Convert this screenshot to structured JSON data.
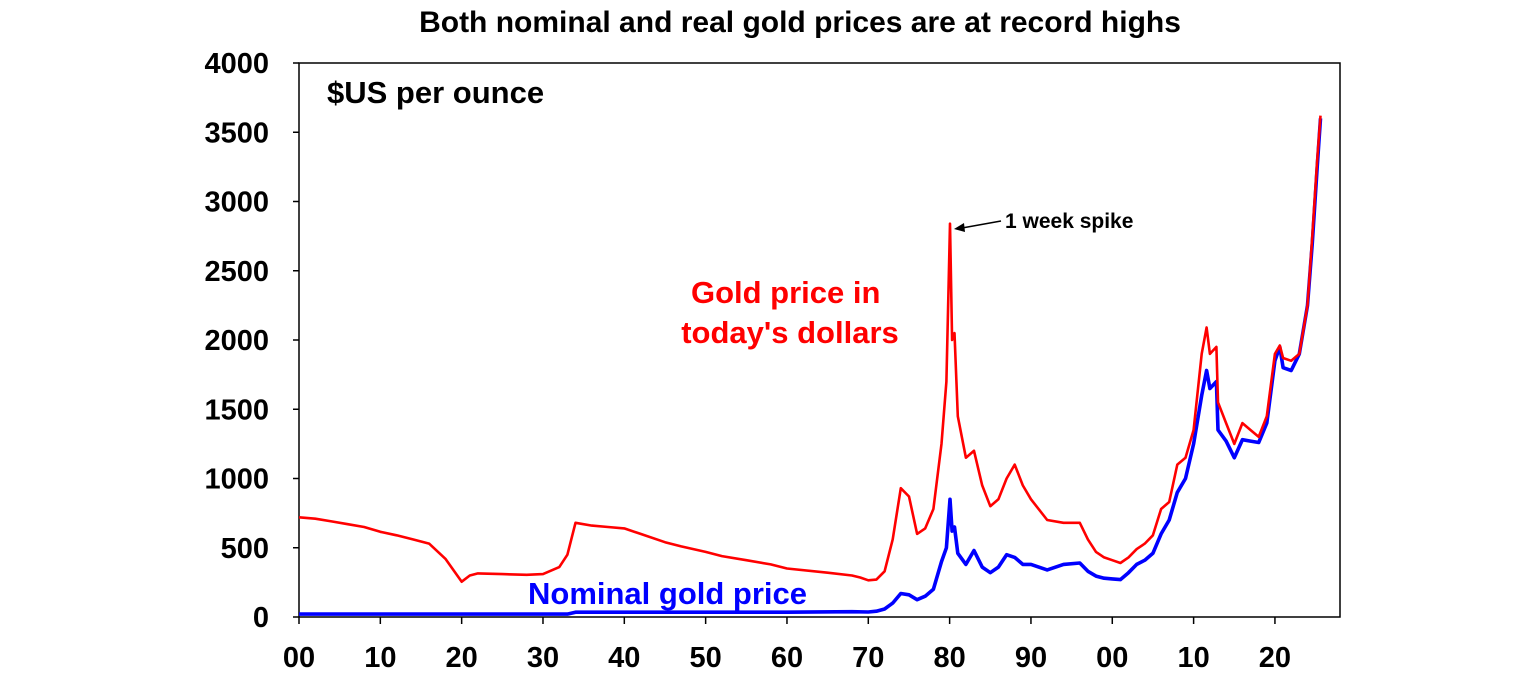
{
  "chart_data": {
    "type": "line",
    "title": "Both nominal and real gold prices are at record highs",
    "unit_label": "$US per ounce",
    "ylim": [
      0,
      4000
    ],
    "yticks": [
      0,
      500,
      1000,
      1500,
      2000,
      2500,
      3000,
      3500,
      4000
    ],
    "xlim": [
      1900,
      2028
    ],
    "xticks": [
      {
        "value": 1900,
        "label": "00"
      },
      {
        "value": 1910,
        "label": "10"
      },
      {
        "value": 1920,
        "label": "20"
      },
      {
        "value": 1930,
        "label": "30"
      },
      {
        "value": 1940,
        "label": "40"
      },
      {
        "value": 1950,
        "label": "50"
      },
      {
        "value": 1960,
        "label": "60"
      },
      {
        "value": 1970,
        "label": "70"
      },
      {
        "value": 1980,
        "label": "80"
      },
      {
        "value": 1990,
        "label": "90"
      },
      {
        "value": 2000,
        "label": "00"
      },
      {
        "value": 2010,
        "label": "10"
      },
      {
        "value": 2020,
        "label": "20"
      }
    ],
    "grid": false,
    "legend": "none (inline series labels)",
    "series": [
      {
        "name": "Gold price in today's dollars",
        "label_line1": "Gold price in",
        "label_line2": "today's dollars",
        "color": "#ff0000",
        "points": [
          [
            1900,
            720
          ],
          [
            1902,
            710
          ],
          [
            1904,
            690
          ],
          [
            1906,
            670
          ],
          [
            1908,
            650
          ],
          [
            1910,
            615
          ],
          [
            1912,
            590
          ],
          [
            1914,
            560
          ],
          [
            1916,
            530
          ],
          [
            1918,
            420
          ],
          [
            1920,
            255
          ],
          [
            1921,
            300
          ],
          [
            1922,
            315
          ],
          [
            1925,
            310
          ],
          [
            1928,
            305
          ],
          [
            1930,
            310
          ],
          [
            1932,
            360
          ],
          [
            1933,
            450
          ],
          [
            1934,
            680
          ],
          [
            1936,
            660
          ],
          [
            1938,
            650
          ],
          [
            1940,
            640
          ],
          [
            1942,
            600
          ],
          [
            1945,
            540
          ],
          [
            1947,
            510
          ],
          [
            1950,
            470
          ],
          [
            1952,
            440
          ],
          [
            1955,
            410
          ],
          [
            1958,
            380
          ],
          [
            1960,
            350
          ],
          [
            1965,
            320
          ],
          [
            1968,
            300
          ],
          [
            1969,
            285
          ],
          [
            1970,
            265
          ],
          [
            1971,
            270
          ],
          [
            1972,
            330
          ],
          [
            1973,
            560
          ],
          [
            1974,
            930
          ],
          [
            1975,
            870
          ],
          [
            1976,
            600
          ],
          [
            1977,
            640
          ],
          [
            1978,
            780
          ],
          [
            1979,
            1250
          ],
          [
            1979.6,
            1700
          ],
          [
            1980.05,
            2840
          ],
          [
            1980.3,
            2000
          ],
          [
            1980.6,
            2050
          ],
          [
            1981,
            1450
          ],
          [
            1982,
            1150
          ],
          [
            1983,
            1200
          ],
          [
            1984,
            950
          ],
          [
            1985,
            800
          ],
          [
            1986,
            850
          ],
          [
            1987,
            1000
          ],
          [
            1988,
            1100
          ],
          [
            1989,
            950
          ],
          [
            1990,
            850
          ],
          [
            1992,
            700
          ],
          [
            1994,
            680
          ],
          [
            1996,
            680
          ],
          [
            1997,
            560
          ],
          [
            1998,
            470
          ],
          [
            1999,
            430
          ],
          [
            2000,
            410
          ],
          [
            2001,
            390
          ],
          [
            2002,
            430
          ],
          [
            2003,
            490
          ],
          [
            2004,
            530
          ],
          [
            2005,
            590
          ],
          [
            2006,
            780
          ],
          [
            2007,
            830
          ],
          [
            2008,
            1100
          ],
          [
            2009,
            1150
          ],
          [
            2010,
            1350
          ],
          [
            2011,
            1900
          ],
          [
            2011.6,
            2090
          ],
          [
            2012,
            1900
          ],
          [
            2012.8,
            1950
          ],
          [
            2013,
            1550
          ],
          [
            2014,
            1400
          ],
          [
            2015,
            1250
          ],
          [
            2016,
            1400
          ],
          [
            2017,
            1350
          ],
          [
            2018,
            1300
          ],
          [
            2019,
            1450
          ],
          [
            2020,
            1900
          ],
          [
            2020.6,
            1960
          ],
          [
            2021,
            1870
          ],
          [
            2022,
            1850
          ],
          [
            2023,
            1900
          ],
          [
            2024,
            2250
          ],
          [
            2024.6,
            2750
          ],
          [
            2025.2,
            3300
          ],
          [
            2025.6,
            3620
          ]
        ]
      },
      {
        "name": "Nominal gold price",
        "label": "Nominal gold price",
        "color": "#0000ff",
        "points": [
          [
            1900,
            20.67
          ],
          [
            1910,
            20.67
          ],
          [
            1920,
            20.67
          ],
          [
            1933,
            20.67
          ],
          [
            1934,
            35
          ],
          [
            1940,
            35
          ],
          [
            1950,
            35
          ],
          [
            1960,
            35
          ],
          [
            1968,
            38
          ],
          [
            1970,
            36
          ],
          [
            1971,
            42
          ],
          [
            1972,
            58
          ],
          [
            1973,
            100
          ],
          [
            1974,
            170
          ],
          [
            1975,
            160
          ],
          [
            1976,
            125
          ],
          [
            1977,
            150
          ],
          [
            1978,
            200
          ],
          [
            1979,
            400
          ],
          [
            1979.6,
            500
          ],
          [
            1980.05,
            850
          ],
          [
            1980.3,
            620
          ],
          [
            1980.6,
            650
          ],
          [
            1981,
            460
          ],
          [
            1982,
            380
          ],
          [
            1983,
            480
          ],
          [
            1984,
            360
          ],
          [
            1985,
            320
          ],
          [
            1986,
            360
          ],
          [
            1987,
            450
          ],
          [
            1988,
            430
          ],
          [
            1989,
            380
          ],
          [
            1990,
            380
          ],
          [
            1992,
            340
          ],
          [
            1994,
            380
          ],
          [
            1996,
            390
          ],
          [
            1997,
            330
          ],
          [
            1998,
            295
          ],
          [
            1999,
            280
          ],
          [
            2000,
            275
          ],
          [
            2001,
            270
          ],
          [
            2002,
            320
          ],
          [
            2003,
            380
          ],
          [
            2004,
            410
          ],
          [
            2005,
            460
          ],
          [
            2006,
            600
          ],
          [
            2007,
            700
          ],
          [
            2008,
            900
          ],
          [
            2009,
            1000
          ],
          [
            2010,
            1250
          ],
          [
            2011,
            1600
          ],
          [
            2011.6,
            1780
          ],
          [
            2012,
            1650
          ],
          [
            2012.8,
            1700
          ],
          [
            2013,
            1350
          ],
          [
            2014,
            1270
          ],
          [
            2015,
            1150
          ],
          [
            2016,
            1280
          ],
          [
            2017,
            1270
          ],
          [
            2018,
            1260
          ],
          [
            2019,
            1400
          ],
          [
            2020,
            1850
          ],
          [
            2020.6,
            1950
          ],
          [
            2021,
            1800
          ],
          [
            2022,
            1780
          ],
          [
            2023,
            1900
          ],
          [
            2024,
            2250
          ],
          [
            2024.6,
            2700
          ],
          [
            2025.2,
            3250
          ],
          [
            2025.6,
            3600
          ]
        ]
      }
    ],
    "annotations": [
      {
        "text": "1 week spike",
        "x": 1980.05,
        "y": 2840
      }
    ]
  }
}
